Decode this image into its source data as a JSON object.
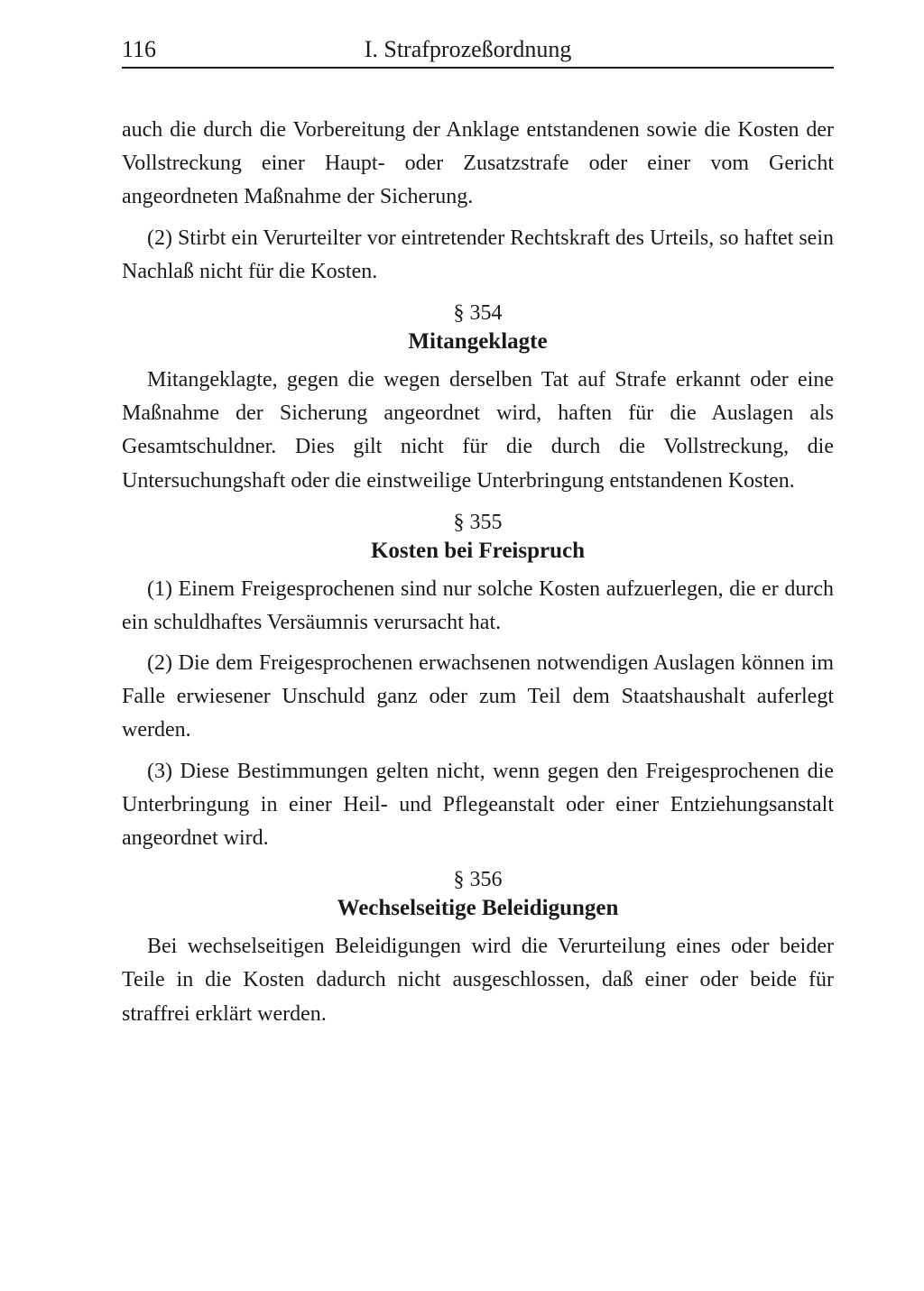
{
  "header": {
    "page_number": "116",
    "title": "I. Strafprozeßordnung"
  },
  "paragraphs": {
    "intro1": "auch die durch die Vorbereitung der Anklage entstandenen sowie die Kosten der Vollstreckung einer Haupt- oder Zusatzstrafe oder einer vom Gericht angeordneten Maßnahme der Sicherung.",
    "intro2": "(2) Stirbt ein Verurteilter vor eintretender Rechtskraft des Urteils, so haftet sein Nachlaß nicht für die Kosten."
  },
  "section354": {
    "number": "§ 354",
    "title": "Mitangeklagte",
    "text": "Mitangeklagte, gegen die wegen derselben Tat auf Strafe erkannt oder eine Maßnahme der Sicherung angeordnet wird, haften für die Auslagen als Gesamtschuldner. Dies gilt nicht für die durch die Vollstreckung, die Untersuchungshaft oder die einstweilige Unterbringung entstandenen Kosten."
  },
  "section355": {
    "number": "§ 355",
    "title": "Kosten bei Freispruch",
    "p1": "(1) Einem Freigesprochenen sind nur solche Kosten aufzuerlegen, die er durch ein schuldhaftes Versäumnis verursacht hat.",
    "p2": "(2) Die dem Freigesprochenen erwachsenen notwendigen Auslagen können im Falle erwiesener Unschuld ganz oder zum Teil dem Staatshaushalt auferlegt werden.",
    "p3": "(3) Diese Bestimmungen gelten nicht, wenn gegen den Freigesprochenen die Unterbringung in einer Heil- und Pflegeanstalt oder einer Entziehungsanstalt angeordnet wird."
  },
  "section356": {
    "number": "§ 356",
    "title": "Wechselseitige Beleidigungen",
    "text": "Bei wechselseitigen Beleidigungen wird die Verurteilung eines oder beider Teile in die Kosten dadurch nicht ausgeschlossen, daß einer oder beide für straffrei erklärt werden."
  },
  "styling": {
    "background_color": "#ffffff",
    "text_color": "#1a1a1a",
    "body_font_size": 24,
    "header_font_size": 26,
    "title_font_size": 25,
    "line_height": 1.55,
    "font_family": "Georgia, serif"
  }
}
